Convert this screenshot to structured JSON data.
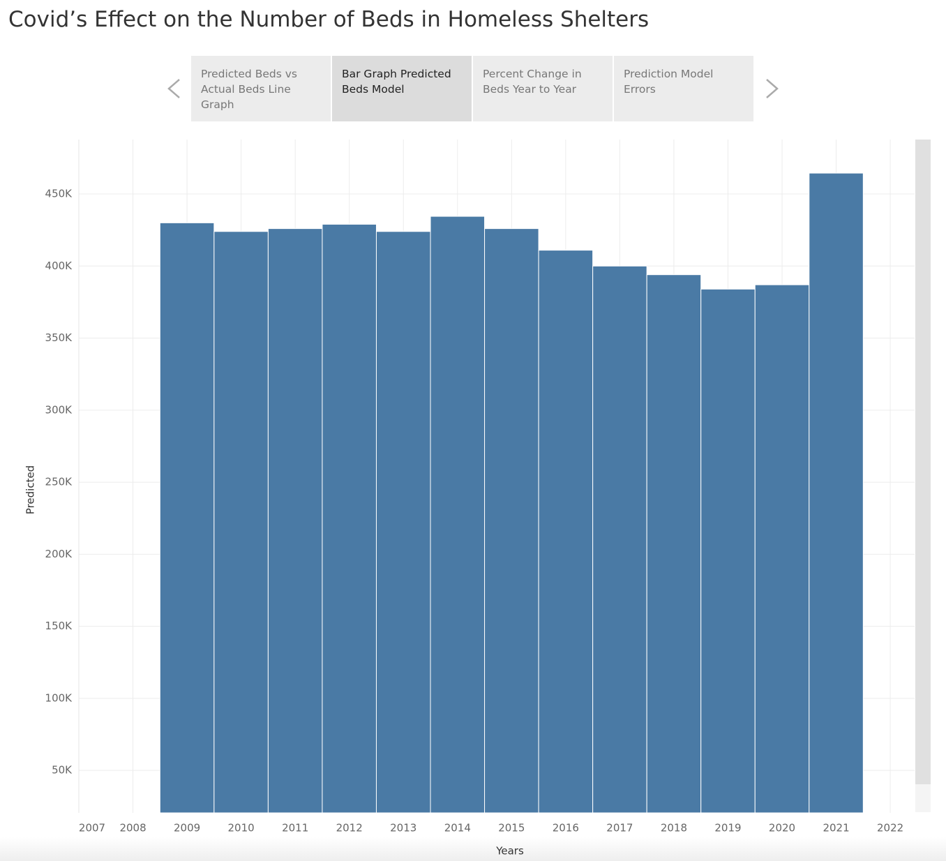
{
  "title": "Covid’s Effect on the Number of Beds in Homeless Shelters",
  "tabs": [
    "Predicted Beds vs Actual Beds Line Graph",
    "Bar Graph Predicted Beds Model",
    "Percent Change in Beds Year to Year",
    "Prediction Model Errors"
  ],
  "active_tab": 1,
  "chart_data": {
    "type": "bar",
    "x": [
      2009,
      2010,
      2011,
      2012,
      2013,
      2014,
      2015,
      2016,
      2017,
      2018,
      2019,
      2020,
      2021
    ],
    "values": [
      430000,
      424000,
      426000,
      429000,
      424000,
      434500,
      426000,
      411000,
      400000,
      394000,
      384000,
      387000,
      464500
    ],
    "color": "#4a7aa5",
    "xlabel": "Years",
    "ylabel": "Predicted",
    "xlim": [
      2007,
      2022.45
    ],
    "ylim": [
      20500,
      487800
    ],
    "xticks": [
      2007,
      2008,
      2009,
      2010,
      2011,
      2012,
      2013,
      2014,
      2015,
      2016,
      2017,
      2018,
      2019,
      2020,
      2021,
      2022
    ],
    "yticks": [
      {
        "value": 50000,
        "label": "50K"
      },
      {
        "value": 100000,
        "label": "100K"
      },
      {
        "value": 150000,
        "label": "150K"
      },
      {
        "value": 200000,
        "label": "200K"
      },
      {
        "value": 250000,
        "label": "250K"
      },
      {
        "value": 300000,
        "label": "300K"
      },
      {
        "value": 350000,
        "label": "350K"
      },
      {
        "value": 400000,
        "label": "400K"
      },
      {
        "value": 450000,
        "label": "450K"
      }
    ],
    "grid": true
  }
}
